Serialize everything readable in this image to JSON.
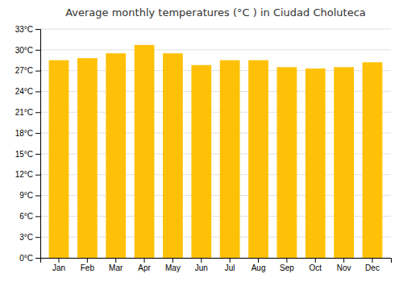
{
  "chart_data": {
    "type": "bar",
    "title": "Average monthly temperatures (°C ) in Ciudad Choluteca",
    "categories": [
      "Jan",
      "Feb",
      "Mar",
      "Apr",
      "May",
      "Jun",
      "Jul",
      "Aug",
      "Sep",
      "Oct",
      "Nov",
      "Dec"
    ],
    "values": [
      28.5,
      28.8,
      29.5,
      30.7,
      29.5,
      27.8,
      28.5,
      28.5,
      27.5,
      27.3,
      27.5,
      28.2
    ],
    "color": "#FFC107",
    "ylim": [
      0,
      33
    ],
    "yticks": [
      {
        "value": 0,
        "label": "0°C"
      },
      {
        "value": 3,
        "label": "3°C"
      },
      {
        "value": 6,
        "label": "6°C"
      },
      {
        "value": 9,
        "label": "9°C"
      },
      {
        "value": 12,
        "label": "12°C"
      },
      {
        "value": 15,
        "label": "15°C"
      },
      {
        "value": 18,
        "label": "18°C"
      },
      {
        "value": 21,
        "label": "21°C"
      },
      {
        "value": 24,
        "label": "24°C"
      },
      {
        "value": 27,
        "label": "27°C"
      },
      {
        "value": 30,
        "label": "30°C"
      },
      {
        "value": 33,
        "label": "33°C"
      }
    ],
    "grid": true
  }
}
